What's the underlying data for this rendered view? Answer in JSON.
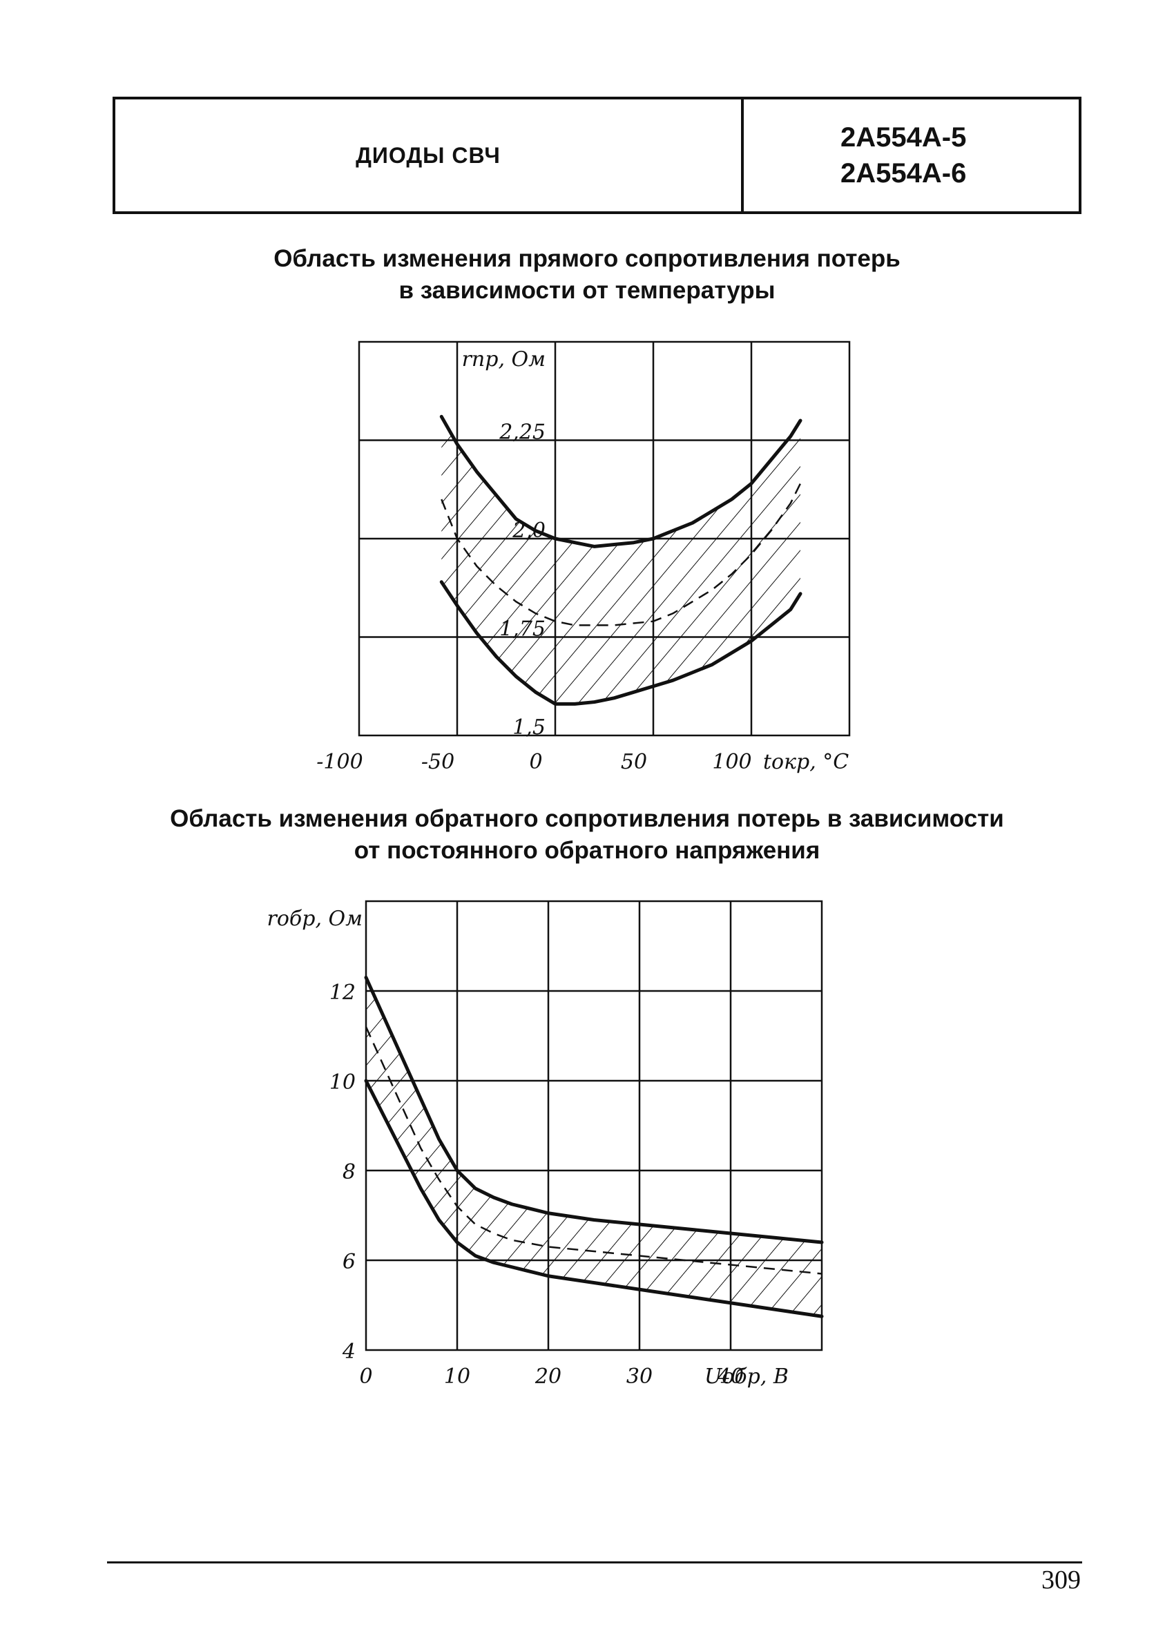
{
  "header": {
    "section_title": "ДИОДЫ СВЧ",
    "models": [
      "2А554А-5",
      "2А554А-6"
    ]
  },
  "charts_text": [
    {
      "title_lines": [
        "Область изменения прямого сопротивления потерь",
        "в зависимости от температуры"
      ]
    },
    {
      "title_lines": [
        "Область изменения обратного сопротивления потерь в зависимости",
        "от постоянного обратного напряжения"
      ]
    }
  ],
  "chart_data": [
    {
      "type": "area",
      "title": "Область изменения прямого сопротивления потерь в зависимости от температуры",
      "xlabel": "tокр, °C",
      "ylabel": "rпр, Ом",
      "xlim": [
        -100,
        150
      ],
      "ylim": [
        1.5,
        2.5
      ],
      "x_ticks": [
        "-100",
        "-50",
        "0",
        "50",
        "100"
      ],
      "y_ticks": [
        "1,5",
        "1,75",
        "2,0",
        "2,25"
      ],
      "grid": true,
      "hatched_region": "between upper and lower curves",
      "series": [
        {
          "style": "solid",
          "x": [
            -58,
            -50,
            -40,
            -30,
            -20,
            -10,
            0,
            10,
            20,
            30,
            40,
            50,
            60,
            70,
            80,
            90,
            100,
            110,
            120,
            125
          ],
          "values": [
            2.31,
            2.24,
            2.17,
            2.11,
            2.05,
            2.02,
            2.0,
            1.99,
            1.98,
            1.985,
            1.99,
            2.0,
            2.02,
            2.04,
            2.07,
            2.1,
            2.14,
            2.2,
            2.26,
            2.3
          ]
        },
        {
          "style": "dashed",
          "x": [
            -58,
            -50,
            -40,
            -30,
            -20,
            -10,
            0,
            10,
            20,
            30,
            40,
            50,
            60,
            70,
            80,
            90,
            100,
            110,
            120,
            125
          ],
          "values": [
            2.1,
            2.0,
            1.93,
            1.88,
            1.84,
            1.81,
            1.79,
            1.78,
            1.78,
            1.78,
            1.785,
            1.79,
            1.81,
            1.84,
            1.87,
            1.91,
            1.96,
            2.02,
            2.09,
            2.14
          ]
        },
        {
          "style": "solid",
          "x": [
            -58,
            -50,
            -40,
            -30,
            -20,
            -10,
            0,
            10,
            20,
            30,
            40,
            50,
            60,
            70,
            80,
            90,
            100,
            110,
            120,
            125
          ],
          "values": [
            1.89,
            1.83,
            1.76,
            1.7,
            1.65,
            1.61,
            1.58,
            1.58,
            1.585,
            1.595,
            1.61,
            1.625,
            1.64,
            1.66,
            1.68,
            1.71,
            1.74,
            1.78,
            1.82,
            1.86
          ]
        }
      ]
    },
    {
      "type": "area",
      "title": "Область изменения обратного сопротивления потерь в зависимости от постоянного обратного напряжения",
      "xlabel": "Uобр, В",
      "ylabel": "rобр, Ом",
      "xlim": [
        0,
        50
      ],
      "ylim": [
        4,
        14
      ],
      "x_ticks": [
        "0",
        "10",
        "20",
        "30",
        "40"
      ],
      "y_ticks": [
        "4",
        "6",
        "8",
        "10",
        "12"
      ],
      "grid": true,
      "hatched_region": "between upper and lower curves",
      "series": [
        {
          "style": "solid",
          "x": [
            0,
            2,
            4,
            6,
            8,
            10,
            12,
            14,
            16,
            20,
            25,
            30,
            35,
            40,
            45,
            50
          ],
          "values": [
            12.3,
            11.4,
            10.5,
            9.6,
            8.7,
            8.0,
            7.6,
            7.4,
            7.25,
            7.05,
            6.9,
            6.8,
            6.7,
            6.6,
            6.5,
            6.4
          ]
        },
        {
          "style": "dashed",
          "x": [
            0,
            2,
            4,
            6,
            8,
            10,
            12,
            14,
            16,
            20,
            25,
            30,
            35,
            40,
            45,
            50
          ],
          "values": [
            11.2,
            10.3,
            9.4,
            8.5,
            7.8,
            7.2,
            6.8,
            6.6,
            6.45,
            6.3,
            6.2,
            6.1,
            6.0,
            5.9,
            5.8,
            5.7
          ]
        },
        {
          "style": "solid",
          "x": [
            0,
            2,
            4,
            6,
            8,
            10,
            12,
            14,
            16,
            20,
            25,
            30,
            35,
            40,
            45,
            50
          ],
          "values": [
            10.0,
            9.2,
            8.4,
            7.6,
            6.9,
            6.4,
            6.1,
            5.95,
            5.85,
            5.65,
            5.5,
            5.35,
            5.2,
            5.05,
            4.9,
            4.75
          ]
        }
      ]
    }
  ],
  "page_number": "309"
}
